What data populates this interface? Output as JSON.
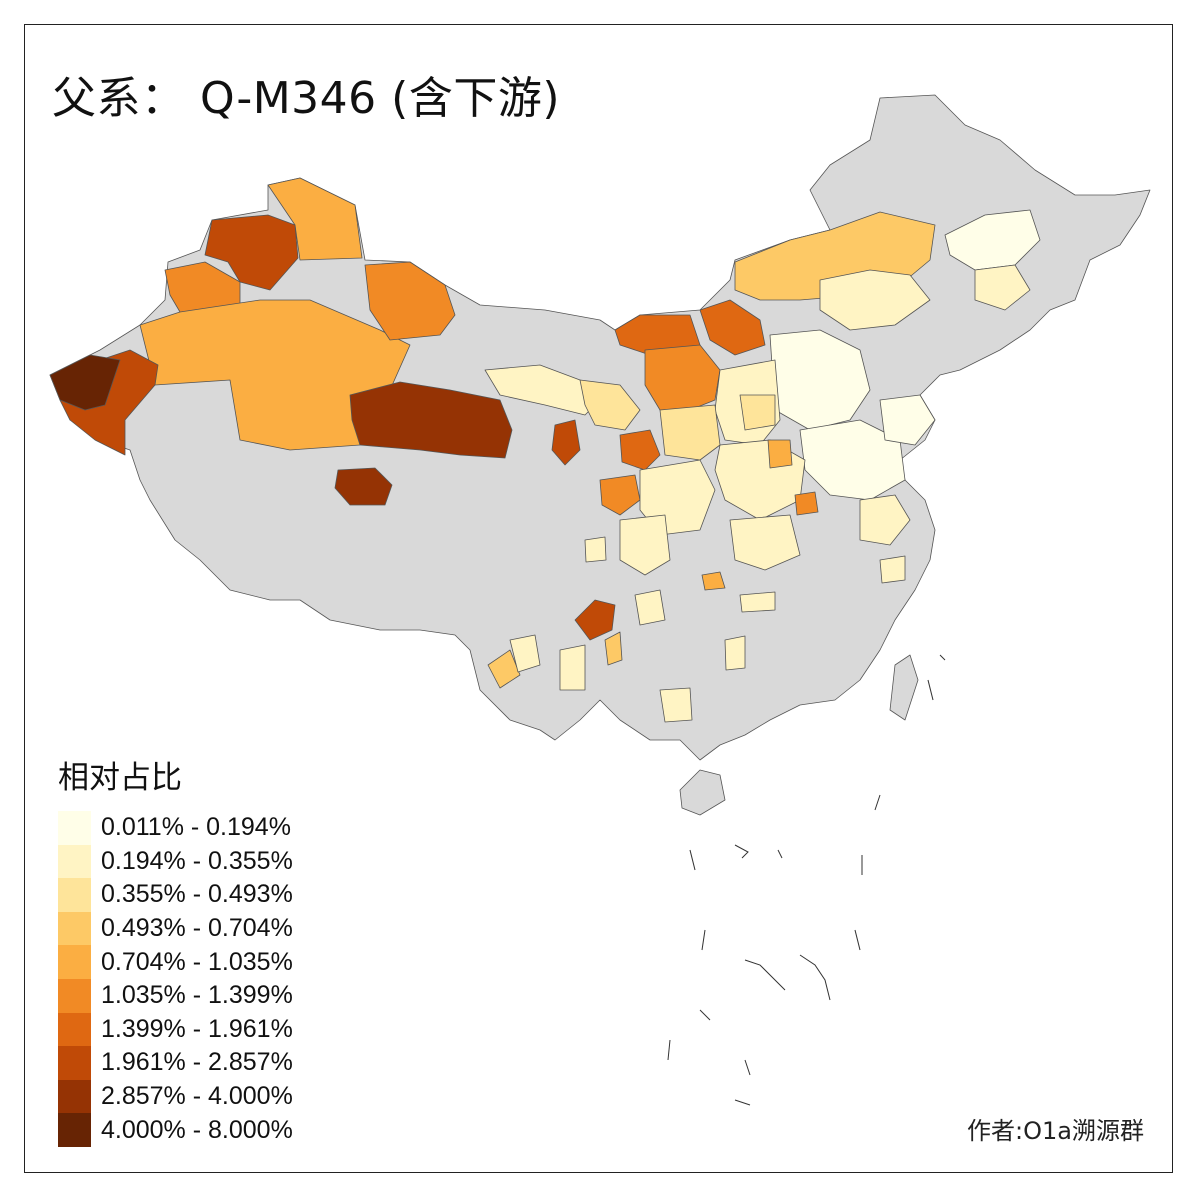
{
  "title": "父系： Q-M346 (含下游)",
  "legend": {
    "title": "相对占比",
    "items": [
      {
        "label": "0.011% - 0.194%",
        "color": "#FFFEE8"
      },
      {
        "label": "0.194% - 0.355%",
        "color": "#FFF4C4"
      },
      {
        "label": "0.355% - 0.493%",
        "color": "#FEE49A"
      },
      {
        "label": "0.493% - 0.704%",
        "color": "#FDC966"
      },
      {
        "label": "0.704% - 1.035%",
        "color": "#FBAE42"
      },
      {
        "label": "1.035% - 1.399%",
        "color": "#F18A25"
      },
      {
        "label": "1.399% - 1.961%",
        "color": "#DF6812"
      },
      {
        "label": "1.961% - 2.857%",
        "color": "#C04A07"
      },
      {
        "label": "2.857% - 4.000%",
        "color": "#953304"
      },
      {
        "label": "4.000% - 8.000%",
        "color": "#672404"
      }
    ]
  },
  "no_data_color": "#D9D9D9",
  "credit": "作者:O1a溯源群"
}
